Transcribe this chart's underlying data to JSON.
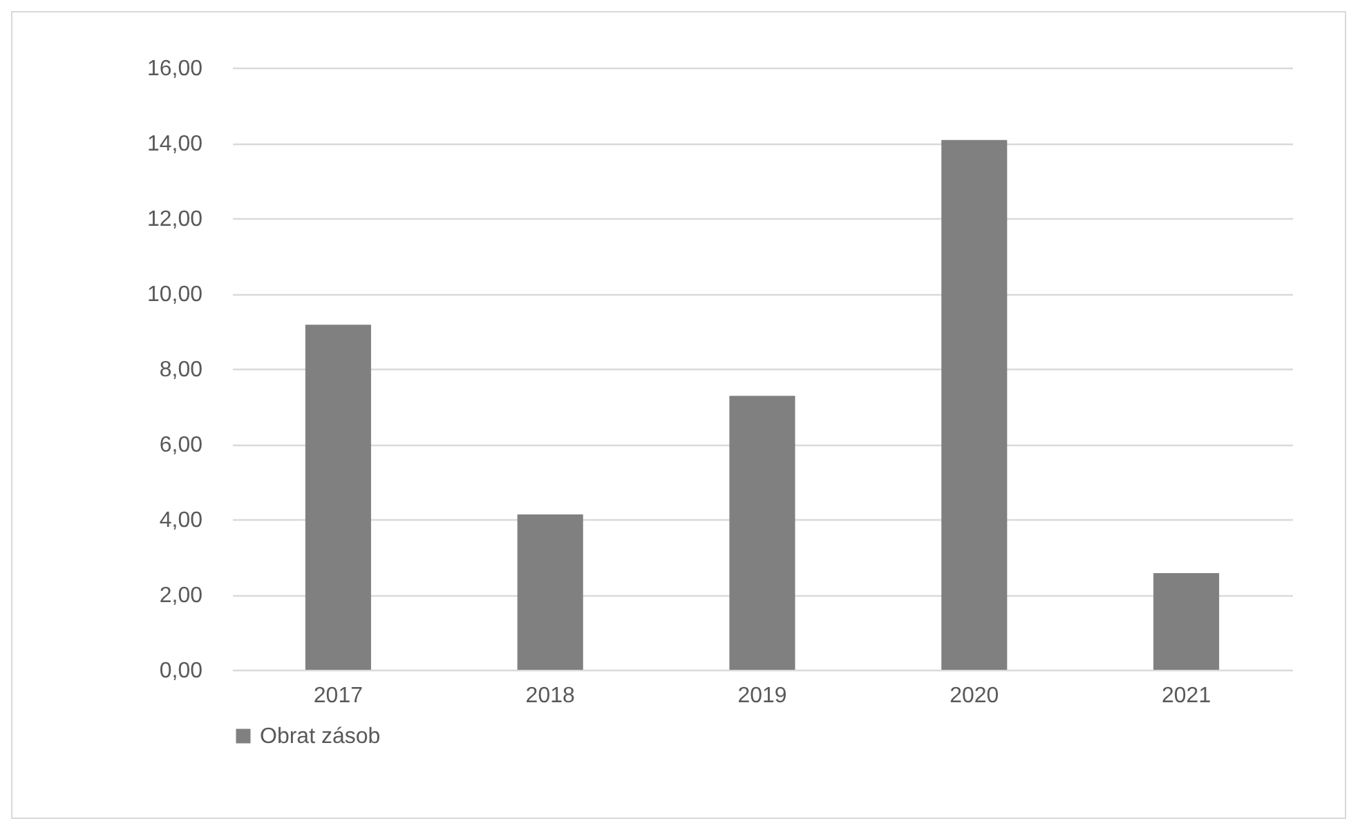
{
  "chart_data": {
    "type": "bar",
    "categories": [
      "2017",
      "2018",
      "2019",
      "2020",
      "2021"
    ],
    "series": [
      {
        "name": "Obrat zásob",
        "color": "#808080",
        "values": [
          9.17,
          4.13,
          7.28,
          14.08,
          2.57
        ]
      }
    ],
    "ylim": [
      0,
      16
    ],
    "yticks": [
      {
        "value": 0,
        "label": "0,00"
      },
      {
        "value": 2,
        "label": "2,00"
      },
      {
        "value": 4,
        "label": "4,00"
      },
      {
        "value": 6,
        "label": "6,00"
      },
      {
        "value": 8,
        "label": "8,00"
      },
      {
        "value": 10,
        "label": "10,00"
      },
      {
        "value": 12,
        "label": "12,00"
      },
      {
        "value": 14,
        "label": "14,00"
      },
      {
        "value": 16,
        "label": "16,00"
      }
    ],
    "grid": "y",
    "legend": "bottom"
  }
}
